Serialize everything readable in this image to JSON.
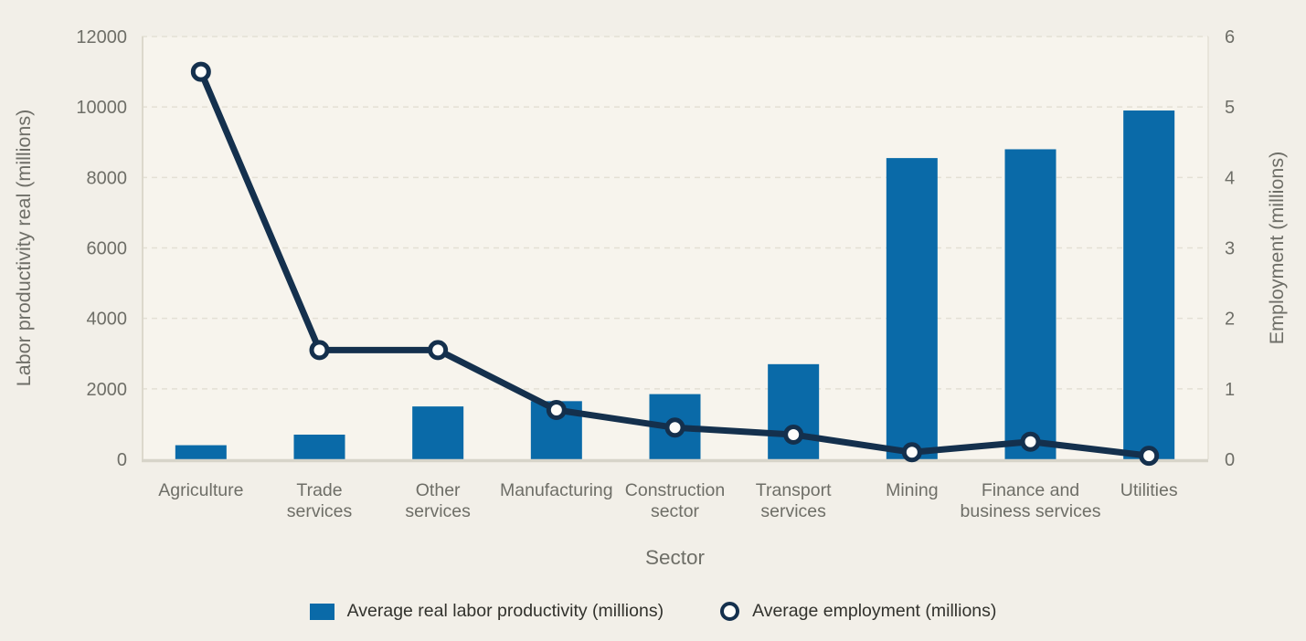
{
  "chart_data": {
    "type": "bar",
    "subtype": "combo-bar-line-dual-axis",
    "categories": [
      "Agriculture",
      "Trade services",
      "Other services",
      "Manufacturing",
      "Construction sector",
      "Transport services",
      "Mining",
      "Finance and business services",
      "Utilities"
    ],
    "category_label_lines": [
      [
        "Agriculture"
      ],
      [
        "Trade",
        "services"
      ],
      [
        "Other",
        "services"
      ],
      [
        "Manufacturing"
      ],
      [
        "Construction",
        "sector"
      ],
      [
        "Transport",
        "services"
      ],
      [
        "Mining"
      ],
      [
        "Finance and",
        "business services"
      ],
      [
        "Utilities"
      ]
    ],
    "series": [
      {
        "name": "Average real labor productivity (millions)",
        "type": "bar",
        "axis": "left",
        "color": "#0a6aa8",
        "values": [
          400,
          700,
          1500,
          1650,
          1850,
          2700,
          8550,
          8800,
          9900
        ]
      },
      {
        "name": "Average employment (millions)",
        "type": "line",
        "axis": "right",
        "color": "#14304d",
        "marker": "open-circle",
        "marker_fill": "#fdfdfa",
        "values": [
          5.5,
          1.55,
          1.55,
          0.7,
          0.45,
          0.35,
          0.1,
          0.25,
          0.05
        ]
      }
    ],
    "xlabel": "Sector",
    "ylabel_left": "Labor productivity real (millions)",
    "ylabel_right": "Employment (millions)",
    "ylim_left": [
      0,
      12000
    ],
    "ylim_right": [
      0,
      6
    ],
    "yticks_left": [
      0,
      2000,
      4000,
      6000,
      8000,
      10000,
      12000
    ],
    "yticks_right": [
      0,
      1,
      2,
      3,
      4,
      5,
      6
    ],
    "grid": "horizontal-dashed",
    "legend_position": "bottom"
  },
  "style_colors": {
    "background": "#f2efe8",
    "plot_background": "#f7f4ed",
    "gridline": "#e4e0d5",
    "axis_line": "#dcd8cc",
    "baseline": "#d7d4c9",
    "axis_text": "#6e6e67",
    "legend_text": "#32322d"
  }
}
